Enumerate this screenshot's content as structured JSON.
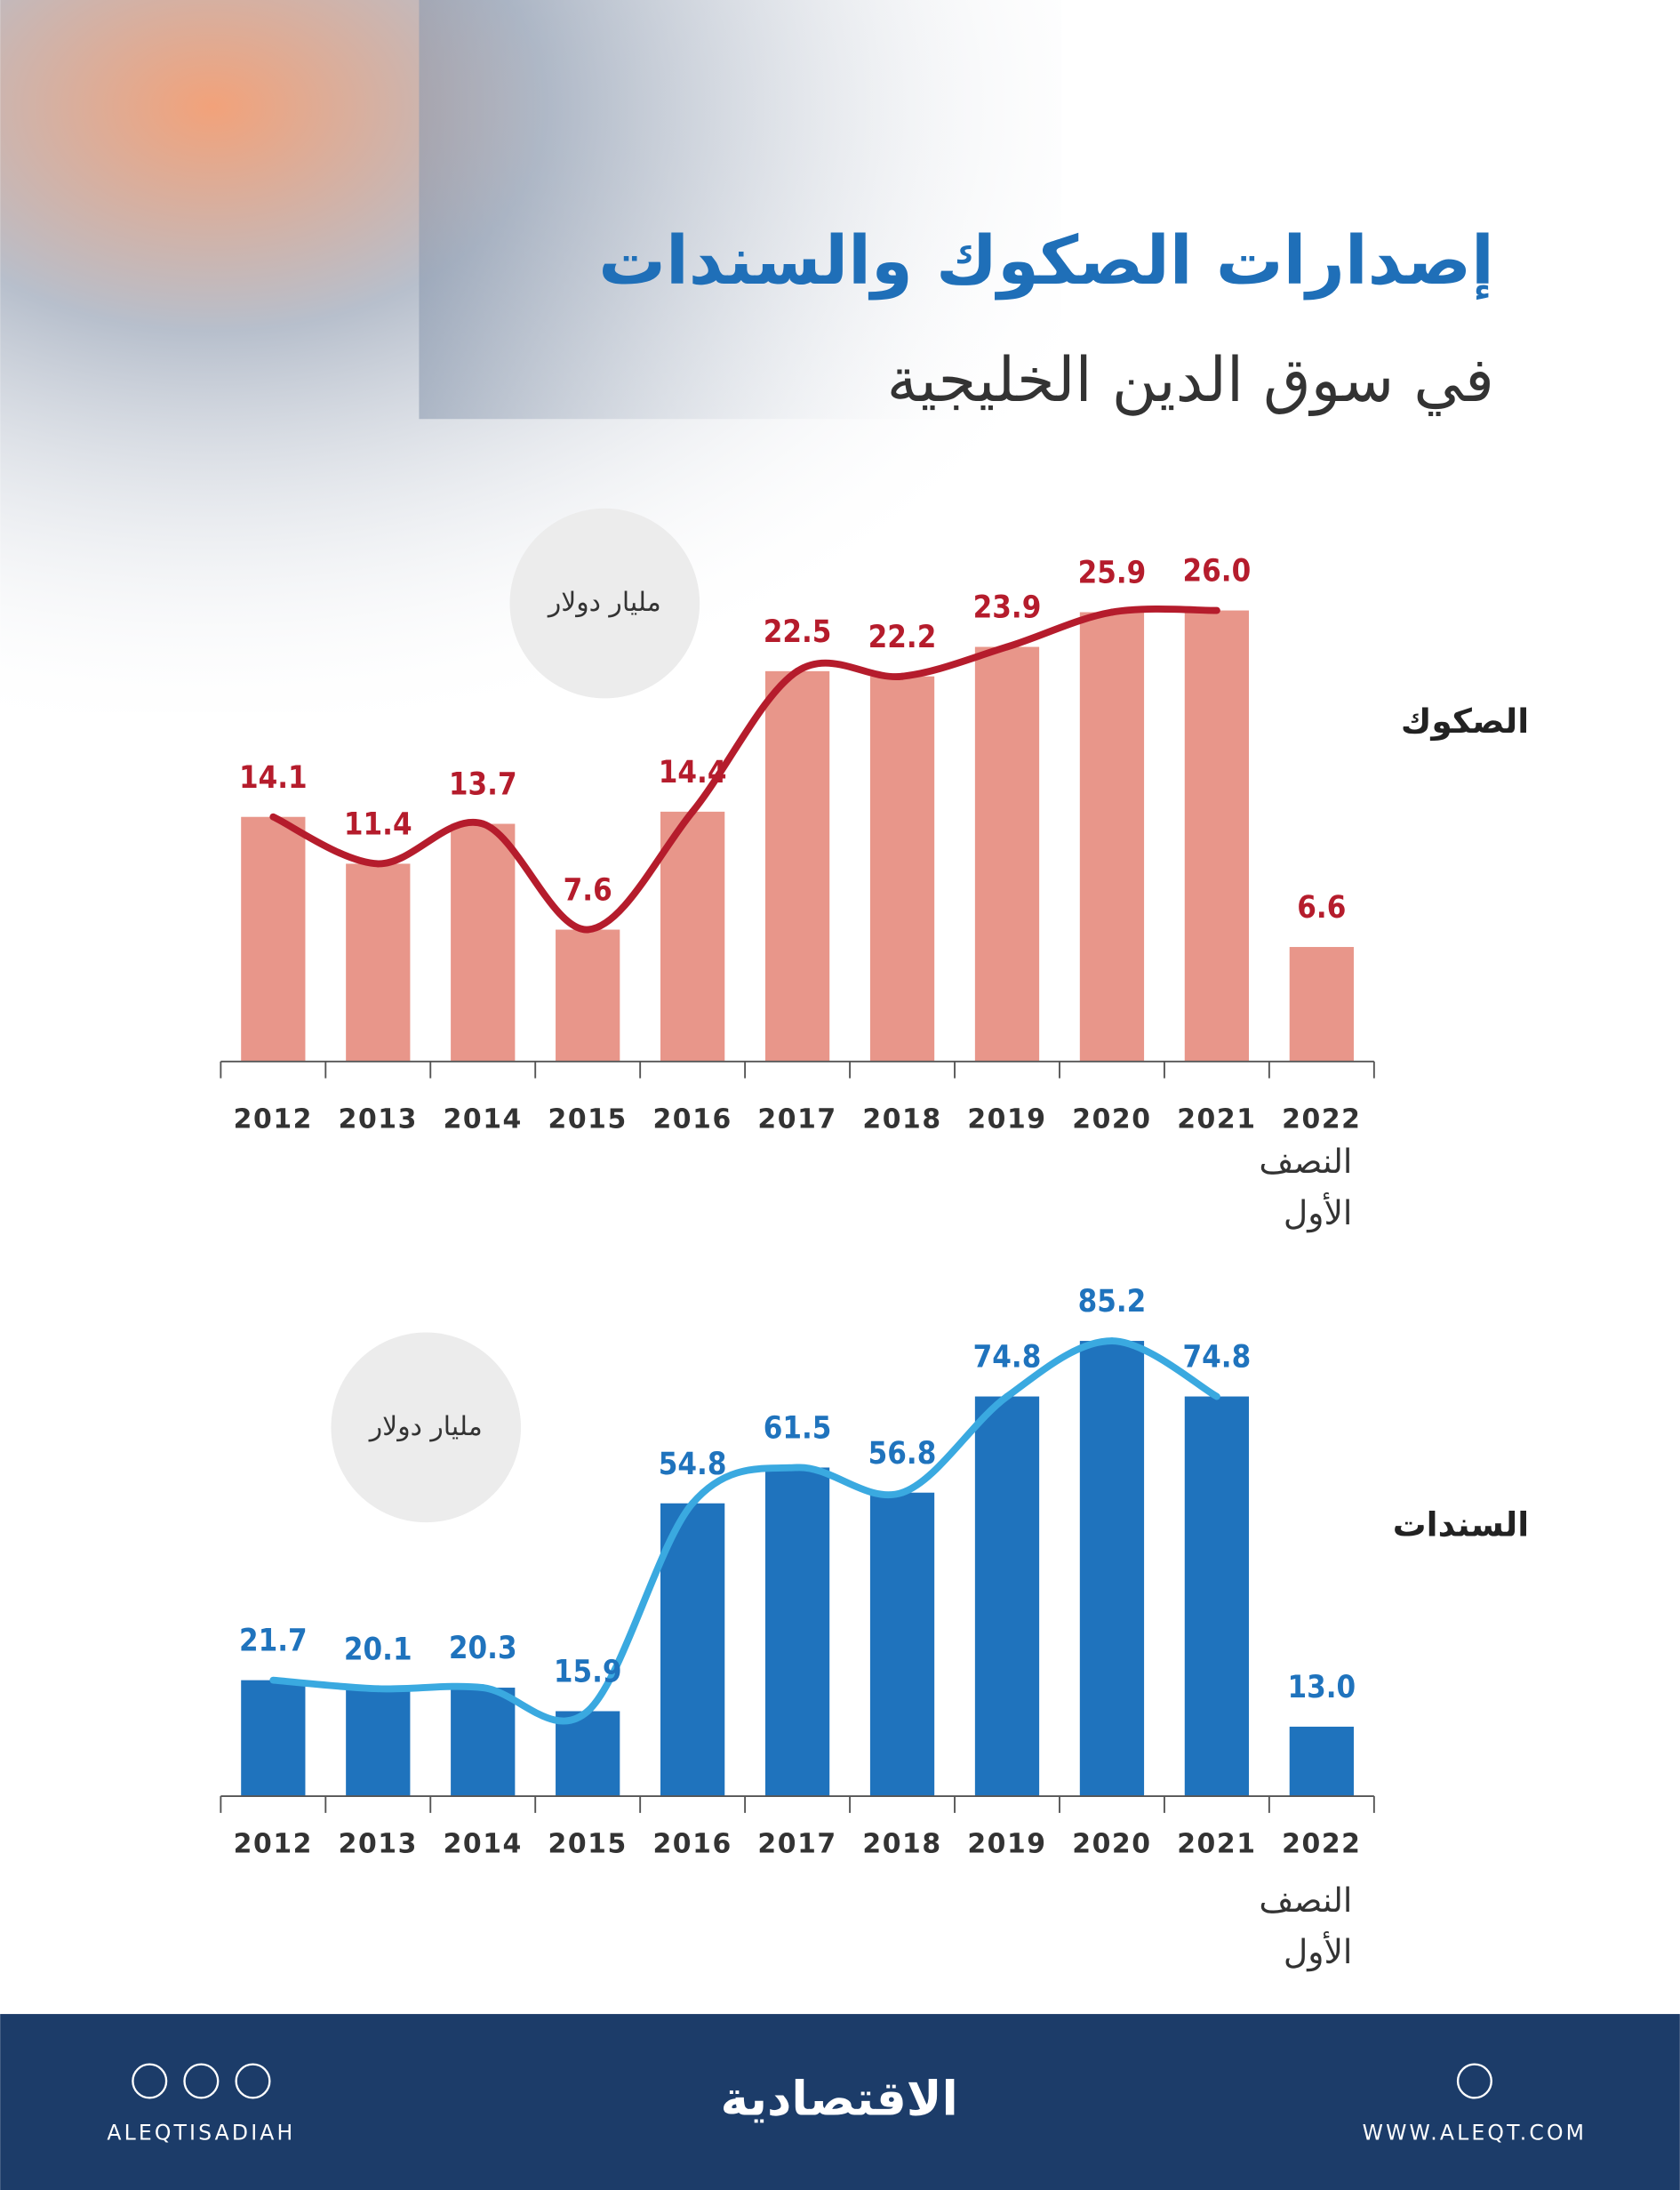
{
  "title": "إصدارات الصكوك والسندات",
  "subtitle": "في سوق الدين الخليجية",
  "footer": {
    "handle": "ALEQTISADIAH",
    "brand": "الاقتصادية",
    "website": "WWW.ALEQT.COM"
  },
  "chart_data": [
    {
      "type": "bar",
      "series_label": "الصكوك",
      "unit": "مليار دولار",
      "categories": [
        "2012",
        "2013",
        "2014",
        "2015",
        "2016",
        "2017",
        "2018",
        "2019",
        "2020",
        "2021",
        "2022"
      ],
      "last_category_note": [
        "النصف",
        "الأول"
      ],
      "values": [
        14.1,
        11.4,
        13.7,
        7.6,
        14.4,
        22.5,
        22.2,
        23.9,
        25.9,
        26.0,
        6.6
      ],
      "value_labels": [
        "14.1",
        "11.4",
        "13.7",
        "7.6",
        "14.4",
        "22.5",
        "22.2",
        "23.9",
        "25.9",
        "26.0",
        "6.6"
      ],
      "color": "#e8968a",
      "line_color": "#b51c2c",
      "label_color": "#b51c2c",
      "ylim": [
        0,
        30
      ]
    },
    {
      "type": "bar",
      "series_label": "السندات",
      "unit": "مليار دولار",
      "categories": [
        "2012",
        "2013",
        "2014",
        "2015",
        "2016",
        "2017",
        "2018",
        "2019",
        "2020",
        "2021",
        "2022"
      ],
      "last_category_note": [
        "النصف",
        "الأول"
      ],
      "values": [
        21.7,
        20.1,
        20.3,
        15.9,
        54.8,
        61.5,
        56.8,
        74.8,
        85.2,
        74.8,
        13.0
      ],
      "value_labels": [
        "21.7",
        "20.1",
        "20.3",
        "15.9",
        "54.8",
        "61.5",
        "56.8",
        "74.8",
        "85.2",
        "74.8",
        "13.0"
      ],
      "color": "#1f73bd",
      "line_color": "#3aa9e0",
      "label_color": "#1f73bd",
      "ylim": [
        0,
        90
      ]
    }
  ]
}
